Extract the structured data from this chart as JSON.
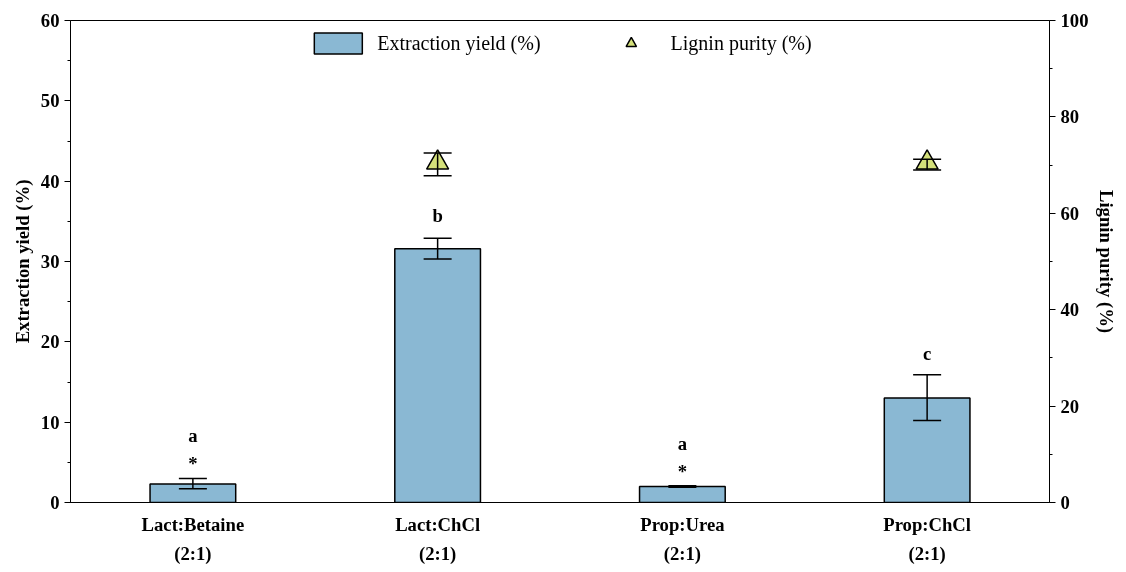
{
  "chart_data": {
    "type": "bar",
    "categories": [
      "Lact:Betaine\n(2:1)",
      "Lact:ChCl\n(2:1)",
      "Prop:Urea\n(2:1)",
      "Prop:ChCl\n(2:1)"
    ],
    "ylabel": "Extraction yield (%)",
    "y2label": "Lignin purity (%)",
    "ylim": [
      0,
      60
    ],
    "yticks": [
      0,
      10,
      20,
      30,
      40,
      50,
      60
    ],
    "y2lim": [
      0,
      100
    ],
    "y2ticks": [
      0,
      20,
      40,
      60,
      80,
      100
    ],
    "series": [
      {
        "name": "Extraction yield (%)",
        "color": "#8ab8d3",
        "values": [
          2.3,
          31.6,
          2.0,
          13.0
        ],
        "errors": [
          [
            1.7,
            3.0
          ],
          [
            30.3,
            32.9
          ],
          [
            1.9,
            2.1
          ],
          [
            10.2,
            15.9
          ]
        ]
      },
      {
        "name": "Lignin purity (%)",
        "type": "scatter",
        "axis": "y2",
        "marker": "triangle",
        "color": "#d4e07a",
        "values": [
          null,
          70.5,
          null,
          70.5
        ],
        "errors": [
          null,
          [
            67.8,
            72.5
          ],
          null,
          [
            69.0,
            71.2
          ]
        ]
      }
    ],
    "annotations": [
      "a",
      "*",
      "b",
      "a",
      "*",
      "c"
    ],
    "legend": "top",
    "grid": false
  }
}
